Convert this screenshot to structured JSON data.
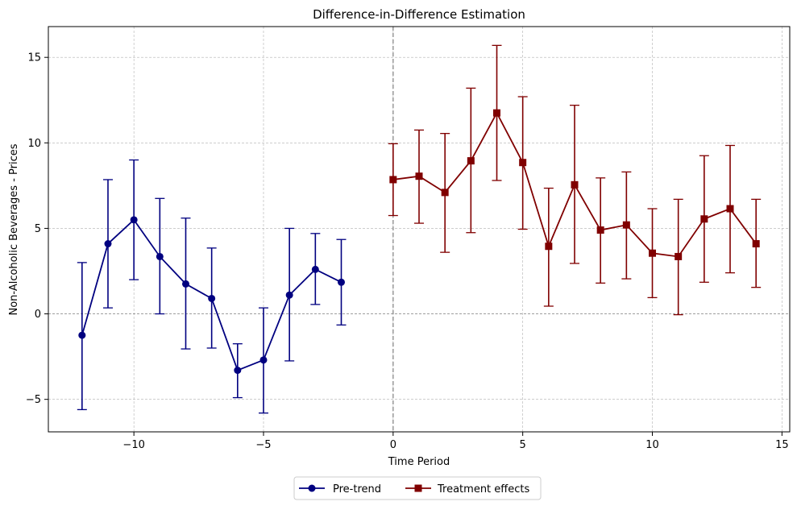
{
  "chart_data": {
    "type": "line",
    "title": "Difference-in-Difference Estimation",
    "xlabel": "Time Period",
    "ylabel": "Non-Alcoholic Beverages - Prices",
    "xlim": [
      -13.3,
      15.3
    ],
    "ylim": [
      -6.9,
      16.8
    ],
    "x_ticks": [
      -10,
      -5,
      0,
      5,
      10,
      15
    ],
    "y_ticks": [
      -5,
      0,
      5,
      10,
      15
    ],
    "x_tick_labels": [
      "−10",
      "−5",
      "0",
      "5",
      "10",
      "15"
    ],
    "y_tick_labels": [
      "−5",
      "0",
      "5",
      "10",
      "15"
    ],
    "grid": true,
    "reference_lines": {
      "vertical_x": 0,
      "horizontal_y": 0
    },
    "legend_position": "bottom-center",
    "series": [
      {
        "name": "Pre-trend",
        "color": "#000080",
        "marker": "circle",
        "x": [
          -12,
          -11,
          -10,
          -9,
          -8,
          -7,
          -6,
          -5,
          -4,
          -3,
          -2
        ],
        "y": [
          -1.25,
          4.1,
          5.5,
          3.35,
          1.75,
          0.9,
          -3.3,
          -2.7,
          1.1,
          2.6,
          1.85
        ],
        "err_low": [
          -5.6,
          0.35,
          2.0,
          0.0,
          -2.05,
          -2.0,
          -4.9,
          -5.8,
          -2.75,
          0.55,
          -0.65
        ],
        "err_high": [
          3.0,
          7.85,
          9.0,
          6.75,
          5.6,
          3.85,
          -1.75,
          0.35,
          5.0,
          4.7,
          4.35
        ]
      },
      {
        "name": "Treatment effects",
        "color": "#800000",
        "marker": "square",
        "x": [
          0,
          1,
          2,
          3,
          4,
          5,
          6,
          7,
          8,
          9,
          10,
          11,
          12,
          13,
          14
        ],
        "y": [
          7.85,
          8.05,
          7.1,
          8.95,
          11.75,
          8.85,
          3.95,
          7.55,
          4.9,
          5.2,
          3.55,
          3.35,
          5.55,
          6.15,
          4.1
        ],
        "err_low": [
          5.75,
          5.3,
          3.6,
          4.75,
          7.8,
          4.95,
          0.45,
          2.95,
          1.8,
          2.05,
          0.95,
          -0.05,
          1.85,
          2.4,
          1.55
        ],
        "err_high": [
          9.95,
          10.75,
          10.55,
          13.2,
          15.7,
          12.7,
          7.35,
          12.2,
          7.95,
          8.3,
          6.15,
          6.7,
          9.25,
          9.85,
          6.7
        ]
      }
    ]
  }
}
